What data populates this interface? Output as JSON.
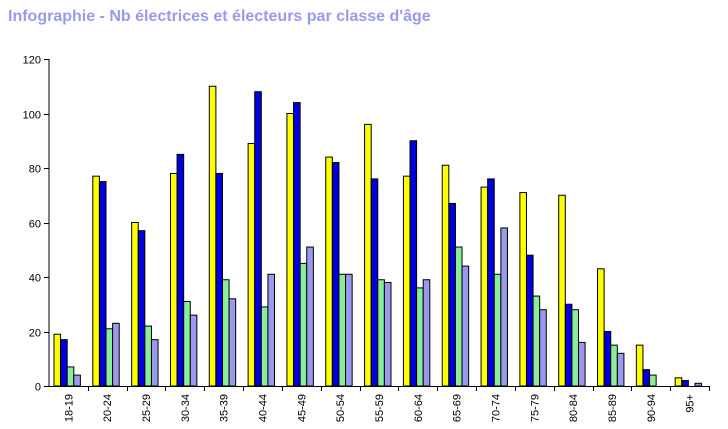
{
  "chart_data": {
    "type": "bar",
    "title": "Infographie - Nb électrices et électeurs par classe d'âge",
    "xlabel": "",
    "ylabel": "",
    "ylim": [
      0,
      120
    ],
    "yticks": [
      0,
      20,
      40,
      60,
      80,
      100,
      120
    ],
    "grid": false,
    "legend": "none",
    "categories": [
      "18-19",
      "20-24",
      "25-29",
      "30-34",
      "35-39",
      "40-44",
      "45-49",
      "50-54",
      "55-59",
      "60-64",
      "65-69",
      "70-74",
      "75-79",
      "80-84",
      "85-89",
      "90-94",
      "95+"
    ],
    "series": [
      {
        "color": "#ffff00",
        "values": [
          19,
          77,
          60,
          78,
          110,
          89,
          100,
          84,
          96,
          77,
          81,
          73,
          71,
          70,
          43,
          15,
          3
        ]
      },
      {
        "color": "#0000dd",
        "values": [
          17,
          75,
          57,
          85,
          78,
          108,
          104,
          82,
          76,
          90,
          67,
          76,
          48,
          30,
          20,
          6,
          2
        ]
      },
      {
        "color": "#88ee99",
        "values": [
          7,
          21,
          22,
          31,
          39,
          29,
          45,
          41,
          39,
          36,
          51,
          41,
          33,
          28,
          15,
          4,
          0
        ]
      },
      {
        "color": "#9999ee",
        "values": [
          4,
          23,
          17,
          26,
          32,
          41,
          51,
          41,
          38,
          39,
          44,
          58,
          28,
          16,
          12,
          0,
          1
        ]
      }
    ]
  }
}
